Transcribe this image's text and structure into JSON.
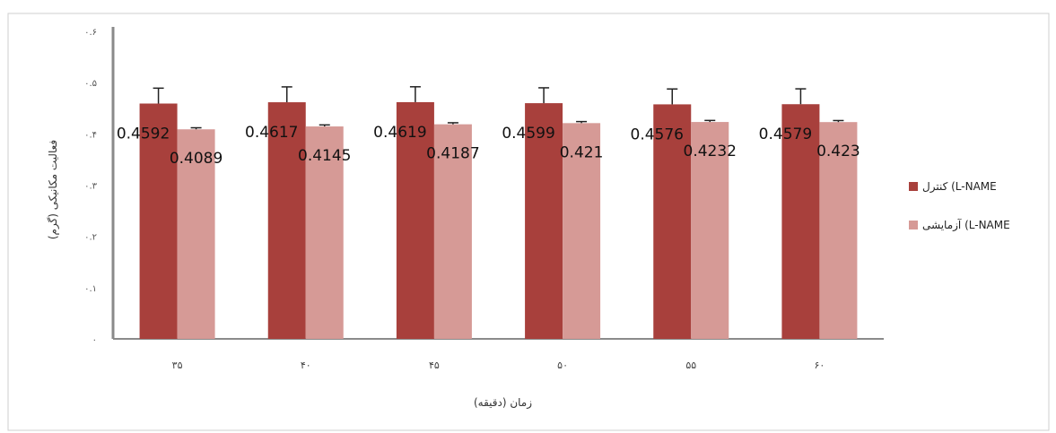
{
  "chart_data": {
    "type": "bar",
    "categories": [
      "۳۵",
      "۴۰",
      "۴۵",
      "۵۰",
      "۵۵",
      "۶۰"
    ],
    "series": [
      {
        "name": "کنترل (L-NAME",
        "color": "#a8403c",
        "values": [
          0.4592,
          0.4617,
          0.4619,
          0.4599,
          0.4576,
          0.4579
        ],
        "error": [
          0.03,
          0.03,
          0.03,
          0.03,
          0.03,
          0.03
        ],
        "labels": [
          "0.4592",
          "0.4617",
          "0.4619",
          "0.4599",
          "0.4576",
          "0.4579"
        ]
      },
      {
        "name": "آزمایشی (L-NAME",
        "color": "#d69a96",
        "values": [
          0.4089,
          0.4145,
          0.4187,
          0.421,
          0.4232,
          0.423
        ],
        "error": [
          0.003,
          0.003,
          0.003,
          0.003,
          0.003,
          0.003
        ],
        "labels": [
          "0.4089",
          "0.4145",
          "0.4187",
          "0.421",
          "0.4232",
          "0.423"
        ]
      }
    ],
    "yticks": [
      "۰",
      "۰.۱",
      "۰.۲",
      "۰.۳",
      "۰.۴",
      "۰.۵",
      "۰.۶"
    ],
    "ylim": [
      0,
      0.6
    ],
    "xlabel": "زمان (دقیقه)",
    "ylabel": "فعالیت مکانیکی (گرم)",
    "legend": "right",
    "grid": false
  }
}
